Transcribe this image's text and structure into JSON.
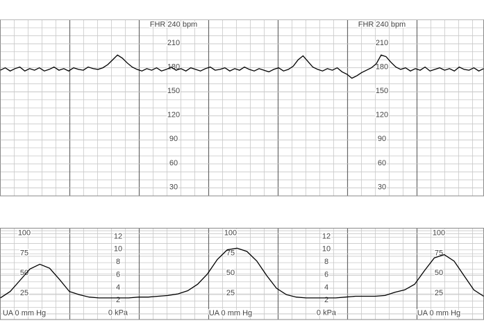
{
  "chart_data": [
    {
      "type": "line",
      "color": "#000000",
      "ylim": [
        20,
        240
      ],
      "yticks": [
        30,
        60,
        90,
        120,
        150,
        180,
        210,
        {
          "value": 240,
          "label": "FHR 240 bpm"
        }
      ],
      "grid": true,
      "values": [
        177,
        180,
        176,
        179,
        181,
        176,
        179,
        177,
        180,
        176,
        178,
        181,
        177,
        179,
        176,
        180,
        178,
        177,
        181,
        179,
        178,
        180,
        184,
        190,
        196,
        192,
        186,
        181,
        178,
        176,
        179,
        177,
        180,
        176,
        178,
        181,
        177,
        179,
        176,
        180,
        178,
        176,
        179,
        181,
        177,
        178,
        180,
        176,
        179,
        177,
        181,
        178,
        176,
        179,
        177,
        175,
        178,
        180,
        176,
        178,
        182,
        190,
        195,
        188,
        181,
        178,
        176,
        179,
        177,
        180,
        175,
        172,
        167,
        170,
        174,
        177,
        180,
        185,
        196,
        194,
        187,
        181,
        178,
        180,
        176,
        179,
        177,
        181,
        176,
        178,
        180,
        177,
        179,
        176,
        181,
        178,
        177,
        180,
        176,
        179
      ]
    },
    {
      "type": "line",
      "color": "#000000",
      "ylim": [
        -7,
        107
      ],
      "yticks": [
        {
          "value": 0,
          "label": "UA  0 mm Hg"
        },
        25,
        50,
        75,
        100
      ],
      "y2lim": [
        -0.9,
        13.4
      ],
      "y2ticks": [
        {
          "value": 0,
          "label": "0 kPa"
        },
        2,
        4,
        6,
        8,
        10,
        12
      ],
      "grid": true,
      "values": [
        20,
        28,
        42,
        56,
        62,
        57,
        43,
        28,
        24,
        21,
        20,
        20,
        20,
        20,
        21,
        21,
        22,
        23,
        25,
        29,
        37,
        50,
        68,
        80,
        82,
        78,
        66,
        48,
        32,
        24,
        21,
        20,
        20,
        20,
        20,
        21,
        22,
        22,
        22,
        23,
        27,
        30,
        37,
        54,
        70,
        74,
        66,
        48,
        30,
        22
      ]
    }
  ]
}
